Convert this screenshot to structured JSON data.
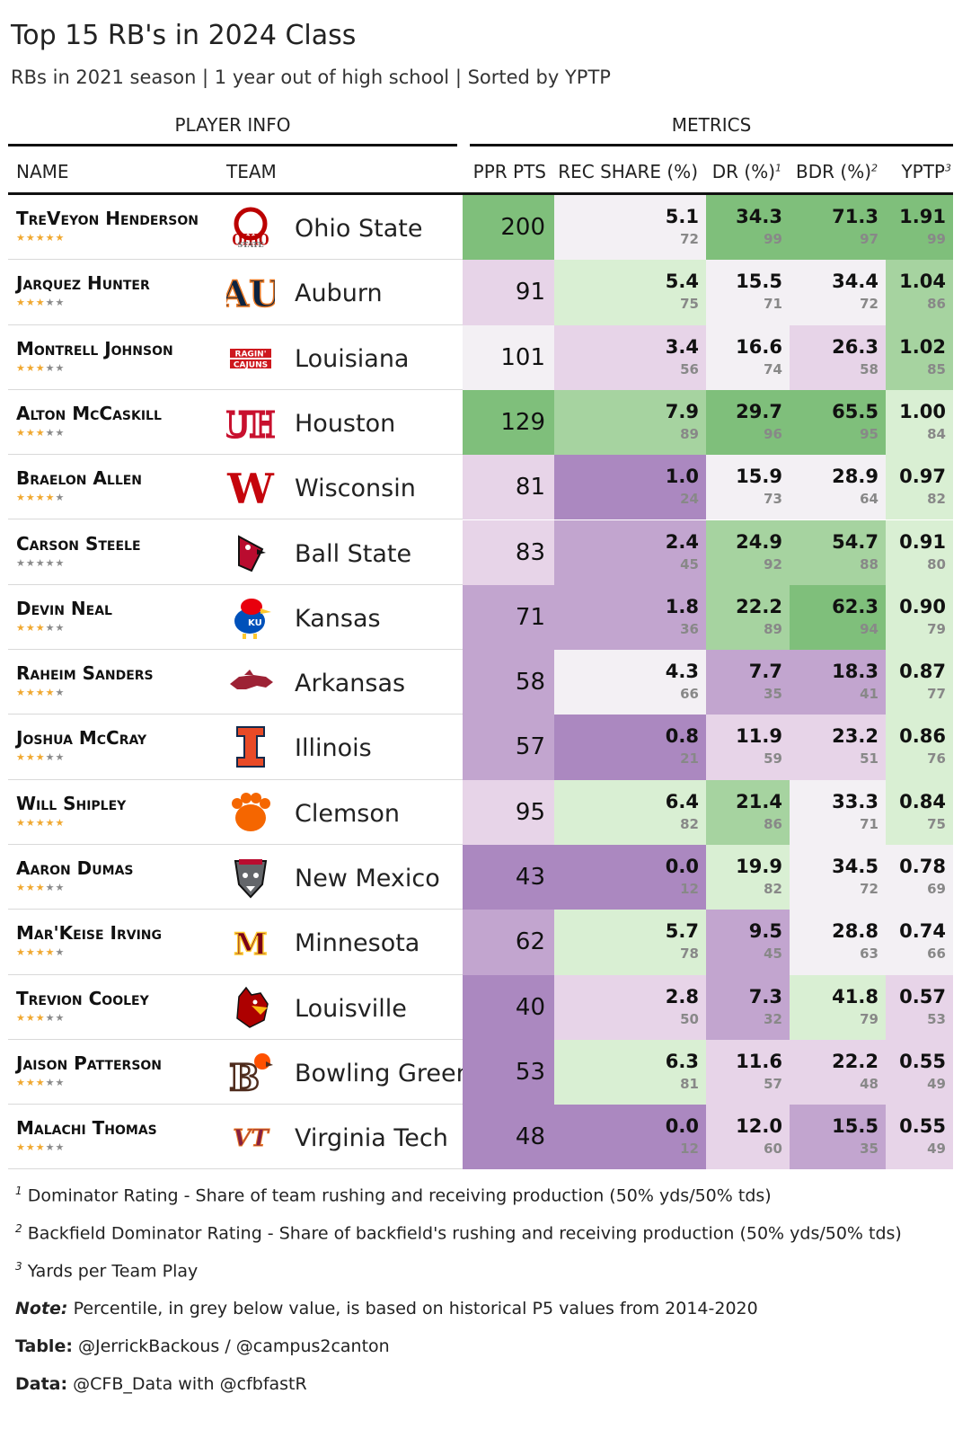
{
  "title": "Top 15 RB's in 2024 Class",
  "subtitle": "RBs in 2021 season | 1 year out of high school | Sorted by YPTP",
  "spanners": {
    "player_info": "PLAYER INFO",
    "metrics": "METRICS"
  },
  "columns": {
    "name": "NAME",
    "team": "TEAM",
    "ppr": "PPR PTS",
    "rec_share": "REC SHARE (%)",
    "dr": "DR (%)",
    "dr_note": "1",
    "bdr": "BDR (%)",
    "bdr_note": "2",
    "yptp": "YPTP",
    "yptp_note": "3"
  },
  "colors": {
    "green_strong": "#7fbf7b",
    "green_mid": "#a6d3a0",
    "green_light": "#d9efd3",
    "neutral": "#f3f0f4",
    "purple_light": "#e7d4e8",
    "purple_mid": "#c2a5cf",
    "purple_strong": "#ab88c0",
    "star_on": "#f0a830",
    "star_off": "#8a8a8a"
  },
  "chart_data": {
    "type": "table",
    "title": "Top 15 RB's in 2024 Class",
    "rows": [
      {
        "name": "TreVeyon Henderson",
        "stars": 5,
        "team": "Ohio State",
        "logo": "ohio-state-logo",
        "ppr": 200,
        "rec_share": 5.1,
        "rec_share_pct": 72,
        "dr": 34.3,
        "dr_pct": 99,
        "bdr": 71.3,
        "bdr_pct": 97,
        "yptp": "1.91",
        "yptp_pct": 99
      },
      {
        "name": "Jarquez Hunter",
        "stars": 3,
        "team": "Auburn",
        "logo": "auburn-logo",
        "ppr": 91,
        "rec_share": 5.4,
        "rec_share_pct": 75,
        "dr": 15.5,
        "dr_pct": 71,
        "bdr": 34.4,
        "bdr_pct": 72,
        "yptp": "1.04",
        "yptp_pct": 86
      },
      {
        "name": "Montrell Johnson",
        "stars": 3,
        "team": "Louisiana",
        "logo": "louisiana-logo",
        "ppr": 101,
        "rec_share": 3.4,
        "rec_share_pct": 56,
        "dr": 16.6,
        "dr_pct": 74,
        "bdr": 26.3,
        "bdr_pct": 58,
        "yptp": "1.02",
        "yptp_pct": 85
      },
      {
        "name": "Alton McCaskill",
        "stars": 3,
        "team": "Houston",
        "logo": "houston-logo",
        "ppr": 129,
        "rec_share": 7.9,
        "rec_share_pct": 89,
        "dr": 29.7,
        "dr_pct": 96,
        "bdr": 65.5,
        "bdr_pct": 95,
        "yptp": "1.00",
        "yptp_pct": 84
      },
      {
        "name": "Braelon Allen",
        "stars": 4,
        "team": "Wisconsin",
        "logo": "wisconsin-logo",
        "ppr": 81,
        "rec_share": 1.0,
        "rec_share_pct": 24,
        "dr": 15.9,
        "dr_pct": 73,
        "bdr": 28.9,
        "bdr_pct": 64,
        "yptp": "0.97",
        "yptp_pct": 82
      },
      {
        "name": "Carson Steele",
        "stars": 0,
        "team": "Ball State",
        "logo": "ball-state-logo",
        "ppr": 83,
        "rec_share": 2.4,
        "rec_share_pct": 45,
        "dr": 24.9,
        "dr_pct": 92,
        "bdr": 54.7,
        "bdr_pct": 88,
        "yptp": "0.91",
        "yptp_pct": 80
      },
      {
        "name": "Devin Neal",
        "stars": 3,
        "team": "Kansas",
        "logo": "kansas-logo",
        "ppr": 71,
        "rec_share": 1.8,
        "rec_share_pct": 36,
        "dr": 22.2,
        "dr_pct": 89,
        "bdr": 62.3,
        "bdr_pct": 94,
        "yptp": "0.90",
        "yptp_pct": 79
      },
      {
        "name": "Raheim Sanders",
        "stars": 4,
        "team": "Arkansas",
        "logo": "arkansas-logo",
        "ppr": 58,
        "rec_share": 4.3,
        "rec_share_pct": 66,
        "dr": 7.7,
        "dr_pct": 35,
        "bdr": 18.3,
        "bdr_pct": 41,
        "yptp": "0.87",
        "yptp_pct": 77
      },
      {
        "name": "Joshua McCray",
        "stars": 3,
        "team": "Illinois",
        "logo": "illinois-logo",
        "ppr": 57,
        "rec_share": 0.8,
        "rec_share_pct": 21,
        "dr": 11.9,
        "dr_pct": 59,
        "bdr": 23.2,
        "bdr_pct": 51,
        "yptp": "0.86",
        "yptp_pct": 76
      },
      {
        "name": "Will Shipley",
        "stars": 5,
        "team": "Clemson",
        "logo": "clemson-logo",
        "ppr": 95,
        "rec_share": 6.4,
        "rec_share_pct": 82,
        "dr": 21.4,
        "dr_pct": 86,
        "bdr": 33.3,
        "bdr_pct": 71,
        "yptp": "0.84",
        "yptp_pct": 75
      },
      {
        "name": "Aaron Dumas",
        "stars": 3,
        "team": "New Mexico",
        "logo": "new-mexico-logo",
        "ppr": 43,
        "rec_share": 0.0,
        "rec_share_pct": 12,
        "dr": 19.9,
        "dr_pct": 82,
        "bdr": 34.5,
        "bdr_pct": 72,
        "yptp": "0.78",
        "yptp_pct": 69
      },
      {
        "name": "Mar'Keise Irving",
        "stars": 4,
        "team": "Minnesota",
        "logo": "minnesota-logo",
        "ppr": 62,
        "rec_share": 5.7,
        "rec_share_pct": 78,
        "dr": 9.5,
        "dr_pct": 45,
        "bdr": 28.8,
        "bdr_pct": 63,
        "yptp": "0.74",
        "yptp_pct": 66
      },
      {
        "name": "Trevion Cooley",
        "stars": 3,
        "team": "Louisville",
        "logo": "louisville-logo",
        "ppr": 40,
        "rec_share": 2.8,
        "rec_share_pct": 50,
        "dr": 7.3,
        "dr_pct": 32,
        "bdr": 41.8,
        "bdr_pct": 79,
        "yptp": "0.57",
        "yptp_pct": 53
      },
      {
        "name": "Jaison Patterson",
        "stars": 3,
        "team": "Bowling Green",
        "logo": "bowling-green-logo",
        "ppr": 53,
        "rec_share": 6.3,
        "rec_share_pct": 81,
        "dr": 11.6,
        "dr_pct": 57,
        "bdr": 22.2,
        "bdr_pct": 48,
        "yptp": "0.55",
        "yptp_pct": 49
      },
      {
        "name": "Malachi Thomas",
        "stars": 3,
        "team": "Virginia Tech",
        "logo": "virginia-tech-logo",
        "ppr": 48,
        "rec_share": 0.0,
        "rec_share_pct": 12,
        "dr": 12.0,
        "dr_pct": 60,
        "bdr": 15.5,
        "bdr_pct": 35,
        "yptp": "0.55",
        "yptp_pct": 49
      }
    ]
  },
  "footnotes": {
    "fn1_mark": "1",
    "fn1": "Dominator Rating - Share of team rushing and receiving production (50% yds/50% tds)",
    "fn2_mark": "2",
    "fn2": "Backfield Dominator Rating - Share of backfield's rushing and receiving production (50% yds/50% tds)",
    "fn3_mark": "3",
    "fn3": "Yards per Team Play",
    "note_label": "Note:",
    "note": " Percentile, in grey below value, is based on historical P5 values from 2014-2020",
    "table_label": "Table:",
    "table": " @JerrickBackous / @campus2canton",
    "data_label": "Data:",
    "data": " @CFB_Data with @cfbfastR"
  }
}
